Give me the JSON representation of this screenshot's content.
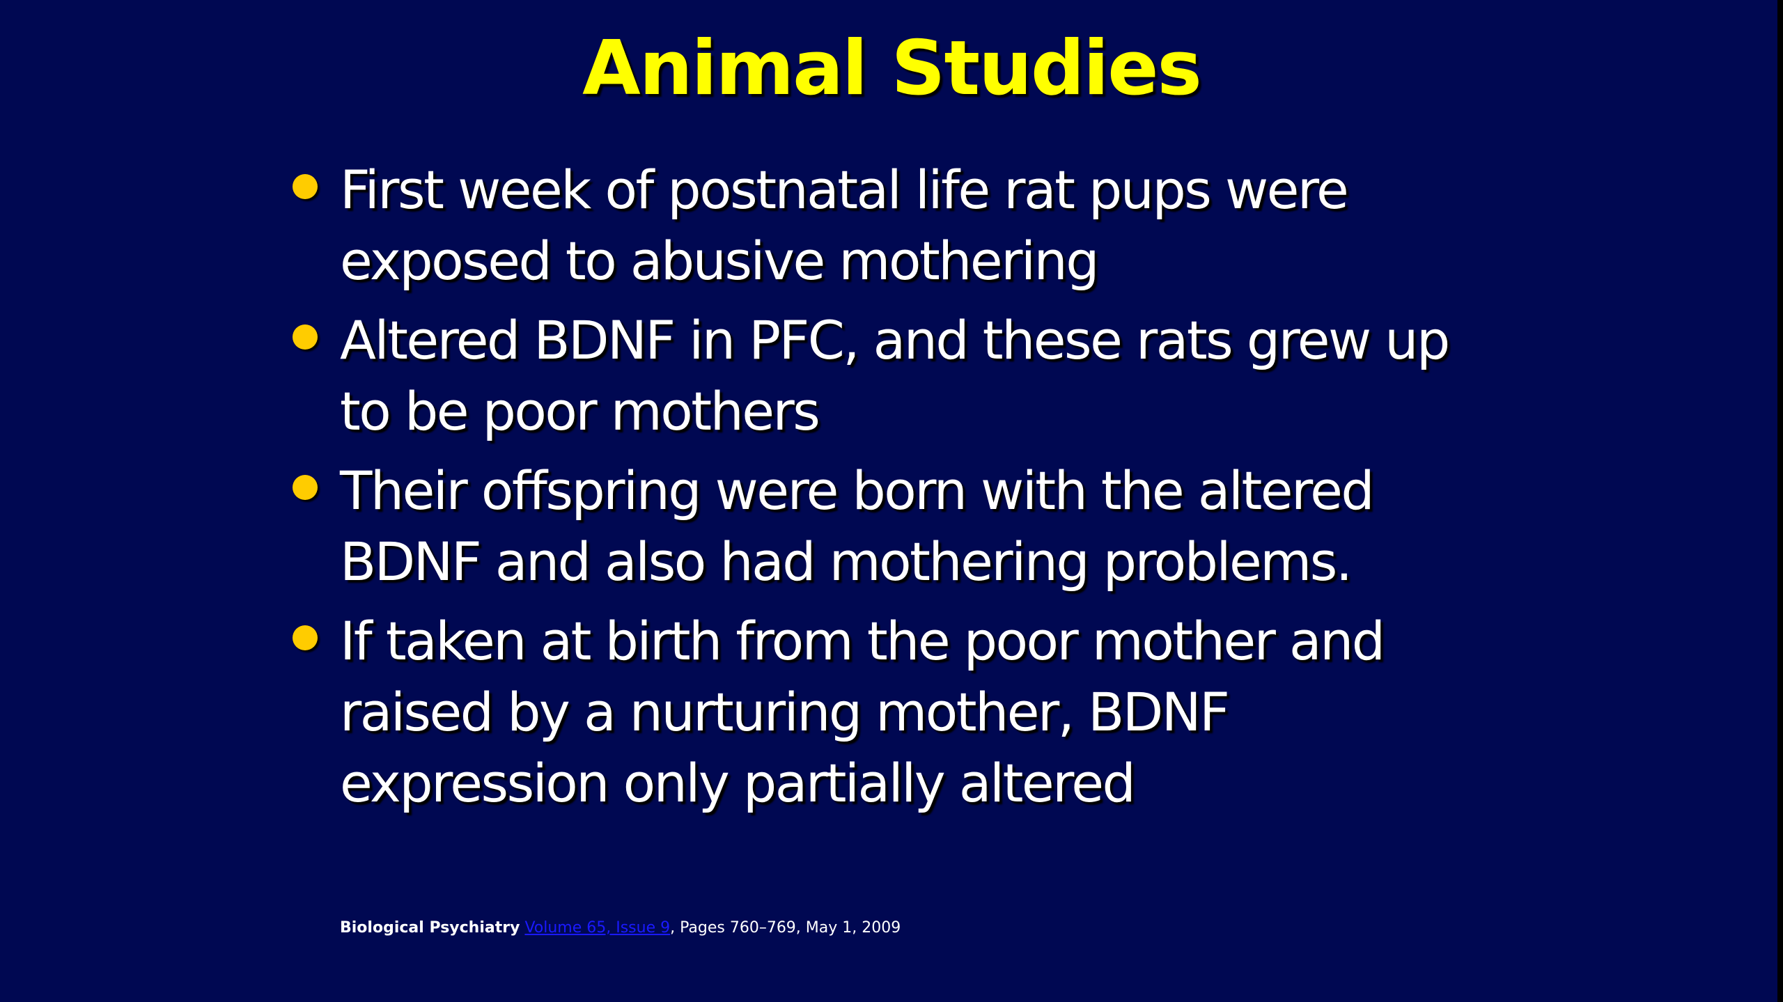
{
  "slide": {
    "title": "Animal Studies",
    "bullets": [
      "First week of postnatal life rat pups were exposed to abusive mothering",
      "Altered BDNF in PFC, and these rats grew up to be poor mothers",
      "Their offspring were born with the altered BDNF and also had mothering problems.",
      "If taken at birth from the poor mother and raised by a nurturing mother, BDNF expression only partially altered"
    ],
    "citation": {
      "journal": "Biological Psychiatry",
      "volume_issue": "Volume 65, Issue 9",
      "rest": ", Pages 760–769, May 1, 2009"
    }
  },
  "colors": {
    "background": "#000852",
    "title": "#ffff00",
    "bullet_marker": "#ffcc00",
    "text": "#ffffff",
    "link": "#1a1aff"
  }
}
